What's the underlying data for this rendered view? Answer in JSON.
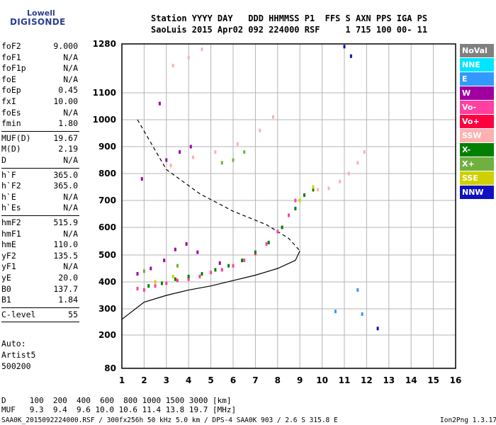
{
  "logo": {
    "line1": "Lowell",
    "line2": "DIGISONDE"
  },
  "header": {
    "line1": "Station YYYY DAY   DDD HHMMSS P1  FFS S AXN PPS IGA PS",
    "line2": "SaoLuis 2015 Apr02 092 224000 RSF     1 715 100 00- 11"
  },
  "side_groups": [
    [
      {
        "k": "foF2",
        "v": "9.000"
      },
      {
        "k": "foF1",
        "v": "N/A"
      },
      {
        "k": "foF1p",
        "v": "N/A"
      },
      {
        "k": "foE",
        "v": "N/A"
      },
      {
        "k": "foEp",
        "v": "0.45"
      },
      {
        "k": "fxI",
        "v": "10.00"
      },
      {
        "k": "foEs",
        "v": "N/A"
      },
      {
        "k": "fmin",
        "v": "1.80"
      }
    ],
    [
      {
        "k": "MUF(D)",
        "v": "19.67"
      },
      {
        "k": "M(D)",
        "v": "2.19"
      },
      {
        "k": "D",
        "v": "N/A"
      }
    ],
    [
      {
        "k": "h`F",
        "v": "365.0"
      },
      {
        "k": "h`F2",
        "v": "365.0"
      },
      {
        "k": "h`E",
        "v": "N/A"
      },
      {
        "k": "h`Es",
        "v": "N/A"
      }
    ],
    [
      {
        "k": "hmF2",
        "v": "515.9"
      },
      {
        "k": "hmF1",
        "v": "N/A"
      },
      {
        "k": "hmE",
        "v": "110.0"
      },
      {
        "k": "yF2",
        "v": "135.5"
      },
      {
        "k": "yF1",
        "v": "N/A"
      },
      {
        "k": "yE",
        "v": "20.0"
      },
      {
        "k": "B0",
        "v": "137.7"
      },
      {
        "k": "B1",
        "v": "1.84"
      }
    ],
    [
      {
        "k": "C-level",
        "v": "55"
      }
    ]
  ],
  "auto": {
    "l1": "Auto:",
    "l2": "Artist5",
    "l3": "500200"
  },
  "footer": {
    "d_row": "D     100  200  400  600  800 1000 1500 3000 [km]",
    "muf_row": "MUF   9.3  9.4  9.6 10.0 10.6 11.4 13.8 19.7 [MHz]",
    "file": "SAA0K_2015092224000.RSF / 300fx256h 50 kHz 5.0 km / DPS-4 SAA0K 903 / 2.6 S 315.8 E",
    "version": "Ion2Png 1.3.17"
  },
  "legend": [
    {
      "label": "NoVal",
      "color": "#808080"
    },
    {
      "label": "NNE",
      "color": "#00e5ff"
    },
    {
      "label": "E",
      "color": "#3399ff"
    },
    {
      "label": "W",
      "color": "#a000a0"
    },
    {
      "label": "Vo-",
      "color": "#ff40a0"
    },
    {
      "label": "Vo+",
      "color": "#ff0040"
    },
    {
      "label": "SSW",
      "color": "#ffb0b0"
    },
    {
      "label": "X-",
      "color": "#008000"
    },
    {
      "label": "X+",
      "color": "#70b040"
    },
    {
      "label": "SSE",
      "color": "#d0d000"
    },
    {
      "label": "NNW",
      "color": "#1010c0"
    }
  ],
  "chart_data": {
    "type": "scatter",
    "xlim": [
      1,
      16
    ],
    "ylim": [
      80,
      1280
    ],
    "x_ticks": [
      1,
      2,
      3,
      4,
      5,
      6,
      7,
      8,
      9,
      10,
      11,
      12,
      13,
      14,
      15,
      16
    ],
    "y_ticks": [
      80,
      200,
      300,
      400,
      500,
      600,
      700,
      800,
      900,
      1000,
      1100,
      1280
    ],
    "y_scale": "height-ionogram",
    "grid": true,
    "legend_position": "right",
    "series": [
      {
        "name": "Vo-",
        "color": "#ff40a0",
        "points": [
          [
            1.7,
            375
          ],
          [
            2,
            370
          ],
          [
            2.5,
            385
          ],
          [
            3,
            395
          ],
          [
            3.5,
            405
          ],
          [
            4,
            410
          ],
          [
            4.5,
            420
          ],
          [
            5,
            435
          ],
          [
            5.5,
            445
          ],
          [
            6,
            460
          ],
          [
            6.5,
            480
          ],
          [
            7,
            505
          ],
          [
            7.5,
            540
          ],
          [
            8,
            585
          ],
          [
            8.5,
            645
          ],
          [
            8.8,
            700
          ]
        ]
      },
      {
        "name": "X-",
        "color": "#008000",
        "points": [
          [
            2.2,
            385
          ],
          [
            2.8,
            395
          ],
          [
            3.4,
            410
          ],
          [
            4,
            420
          ],
          [
            4.6,
            430
          ],
          [
            5.2,
            445
          ],
          [
            5.8,
            460
          ],
          [
            6.4,
            480
          ],
          [
            7,
            510
          ],
          [
            7.6,
            545
          ],
          [
            8.2,
            600
          ],
          [
            8.8,
            670
          ],
          [
            9.2,
            720
          ],
          [
            9.6,
            740
          ]
        ]
      },
      {
        "name": "SSW",
        "color": "#ffb0b0",
        "points": [
          [
            9.8,
            740
          ],
          [
            10.3,
            745
          ],
          [
            10.8,
            770
          ],
          [
            11.2,
            800
          ],
          [
            11.6,
            840
          ],
          [
            11.9,
            880
          ],
          [
            3.2,
            830
          ],
          [
            4.2,
            860
          ],
          [
            5.2,
            880
          ],
          [
            6.2,
            910
          ],
          [
            7.2,
            960
          ],
          [
            7.8,
            1010
          ],
          [
            3.3,
            1200
          ],
          [
            4,
            1230
          ],
          [
            4.6,
            1260
          ]
        ]
      },
      {
        "name": "W",
        "color": "#a000a0",
        "points": [
          [
            1.7,
            430
          ],
          [
            2.3,
            450
          ],
          [
            2.9,
            480
          ],
          [
            3.4,
            520
          ],
          [
            3.9,
            540
          ],
          [
            4.4,
            510
          ],
          [
            5.4,
            470
          ],
          [
            3,
            850
          ],
          [
            3.6,
            880
          ],
          [
            4.1,
            900
          ],
          [
            2.7,
            1060
          ],
          [
            1.9,
            780
          ]
        ]
      },
      {
        "name": "X+",
        "color": "#70b040",
        "points": [
          [
            5.5,
            840
          ],
          [
            6.5,
            880
          ],
          [
            2,
            440
          ],
          [
            3.5,
            460
          ],
          [
            6,
            850
          ]
        ]
      },
      {
        "name": "SSE",
        "color": "#d0d000",
        "points": [
          [
            9,
            700
          ],
          [
            9.6,
            750
          ],
          [
            2.5,
            400
          ],
          [
            3.3,
            420
          ]
        ]
      },
      {
        "name": "E",
        "color": "#3399ff",
        "points": [
          [
            11.6,
            370
          ],
          [
            11.8,
            280
          ],
          [
            10.6,
            290
          ]
        ]
      },
      {
        "name": "NNW",
        "color": "#1010c0",
        "points": [
          [
            11,
            1270
          ],
          [
            11.3,
            1235
          ],
          [
            12.5,
            225
          ]
        ]
      }
    ],
    "profile_solid": [
      [
        1,
        260
      ],
      [
        2,
        325
      ],
      [
        3,
        350
      ],
      [
        4,
        370
      ],
      [
        5,
        385
      ],
      [
        6,
        405
      ],
      [
        7,
        425
      ],
      [
        8,
        450
      ],
      [
        8.8,
        480
      ],
      [
        9,
        515
      ]
    ],
    "profile_dashed": [
      [
        1.7,
        1000
      ],
      [
        3,
        815
      ],
      [
        4.5,
        725
      ],
      [
        6,
        660
      ],
      [
        7.5,
        610
      ],
      [
        8.5,
        560
      ],
      [
        9,
        515
      ]
    ]
  }
}
